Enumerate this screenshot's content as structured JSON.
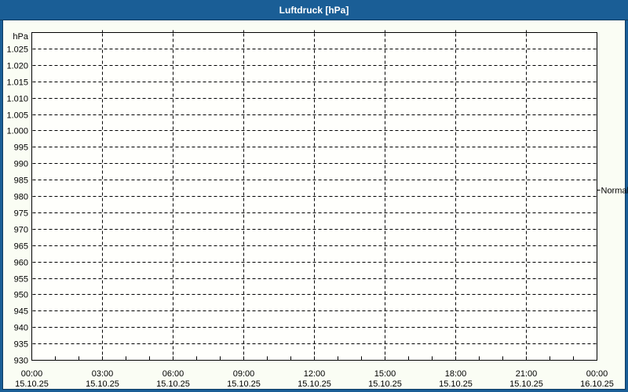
{
  "title": "Luftdruck [hPa]",
  "colors": {
    "frame": "#1a5e96",
    "inner_border": "#0d3c63",
    "title_text": "#ffffff",
    "background": "#fafdf4",
    "plot_background": "#fffffc",
    "axis": "#000000",
    "grid": "#000000",
    "text": "#000000"
  },
  "chart_data": {
    "type": "line",
    "title": "Luftdruck [hPa]",
    "ylabel": "hPa",
    "xlabel": "",
    "ylim": [
      930,
      1030
    ],
    "xlim_hours": [
      0,
      24
    ],
    "grid": "dashed",
    "legend_position": "none",
    "yticks": [
      {
        "value": 1025,
        "label": "1.025"
      },
      {
        "value": 1020,
        "label": "1.020"
      },
      {
        "value": 1015,
        "label": "1.015"
      },
      {
        "value": 1010,
        "label": "1.010"
      },
      {
        "value": 1005,
        "label": "1.005"
      },
      {
        "value": 1000,
        "label": "1.000"
      },
      {
        "value": 995,
        "label": "995"
      },
      {
        "value": 990,
        "label": "990"
      },
      {
        "value": 985,
        "label": "985"
      },
      {
        "value": 980,
        "label": "980"
      },
      {
        "value": 975,
        "label": "975"
      },
      {
        "value": 970,
        "label": "970"
      },
      {
        "value": 965,
        "label": "965"
      },
      {
        "value": 960,
        "label": "960"
      },
      {
        "value": 955,
        "label": "955"
      },
      {
        "value": 950,
        "label": "950"
      },
      {
        "value": 945,
        "label": "945"
      },
      {
        "value": 940,
        "label": "940"
      },
      {
        "value": 935,
        "label": "935"
      },
      {
        "value": 930,
        "label": "930"
      }
    ],
    "xticks": [
      {
        "hour": 0,
        "time": "00:00",
        "date": "15.10.25"
      },
      {
        "hour": 3,
        "time": "03:00",
        "date": "15.10.25"
      },
      {
        "hour": 6,
        "time": "06:00",
        "date": "15.10.25"
      },
      {
        "hour": 9,
        "time": "09:00",
        "date": "15.10.25"
      },
      {
        "hour": 12,
        "time": "12:00",
        "date": "15.10.25"
      },
      {
        "hour": 15,
        "time": "15:00",
        "date": "15.10.25"
      },
      {
        "hour": 18,
        "time": "18:00",
        "date": "15.10.25"
      },
      {
        "hour": 21,
        "time": "21:00",
        "date": "15.10.25"
      },
      {
        "hour": 24,
        "time": "00:00",
        "date": "16.10.25"
      }
    ],
    "x_minor_tick_every_hours": 1,
    "series": [],
    "annotations": [
      {
        "label": "Normal",
        "value": 982,
        "side": "right"
      }
    ]
  }
}
